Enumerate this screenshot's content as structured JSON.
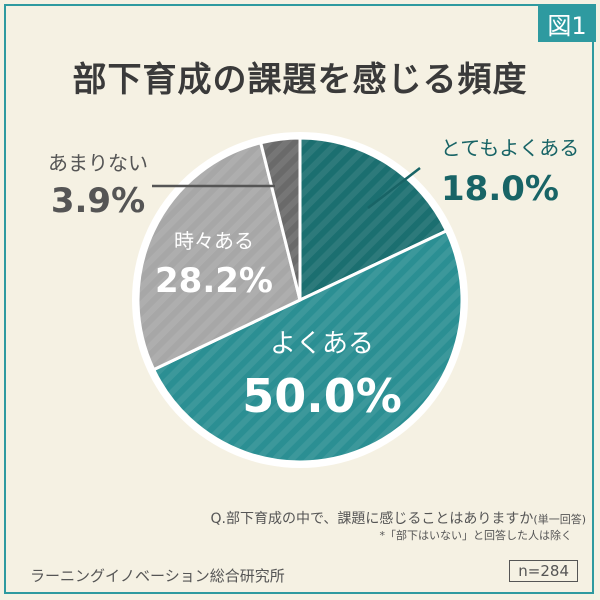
{
  "figure_badge": "図1",
  "title": "部下育成の課題を感じる頻度",
  "notes": {
    "question": "Q.部下育成の中で、課題に感じることはありますか",
    "answer_type": "(単一回答)",
    "exclusion": "*「部下はいない」と回答した人は除く"
  },
  "source": "ラーニングイノベーション総合研究所",
  "sample_size": "n=284",
  "colors": {
    "teal_dark": "#1b6f70",
    "teal": "#2b8f93",
    "gray": "#a7a7a7",
    "dark_gray": "#6a6a6a",
    "text_dark_teal": "#186466",
    "background": "#f5f1e3"
  },
  "chart_data": {
    "type": "pie",
    "start": "12 o'clock, clockwise",
    "slices": [
      {
        "label": "とてもよくある",
        "value": 18.0,
        "display": "18.0%",
        "color": "#1b6f70"
      },
      {
        "label": "よくある",
        "value": 50.0,
        "display": "50.0%",
        "color": "#2b8f93"
      },
      {
        "label": "時々ある",
        "value": 28.2,
        "display": "28.2%",
        "color": "#a7a7a7"
      },
      {
        "label": "あまりない",
        "value": 3.9,
        "display": "3.9%",
        "color": "#6a6a6a"
      }
    ]
  }
}
